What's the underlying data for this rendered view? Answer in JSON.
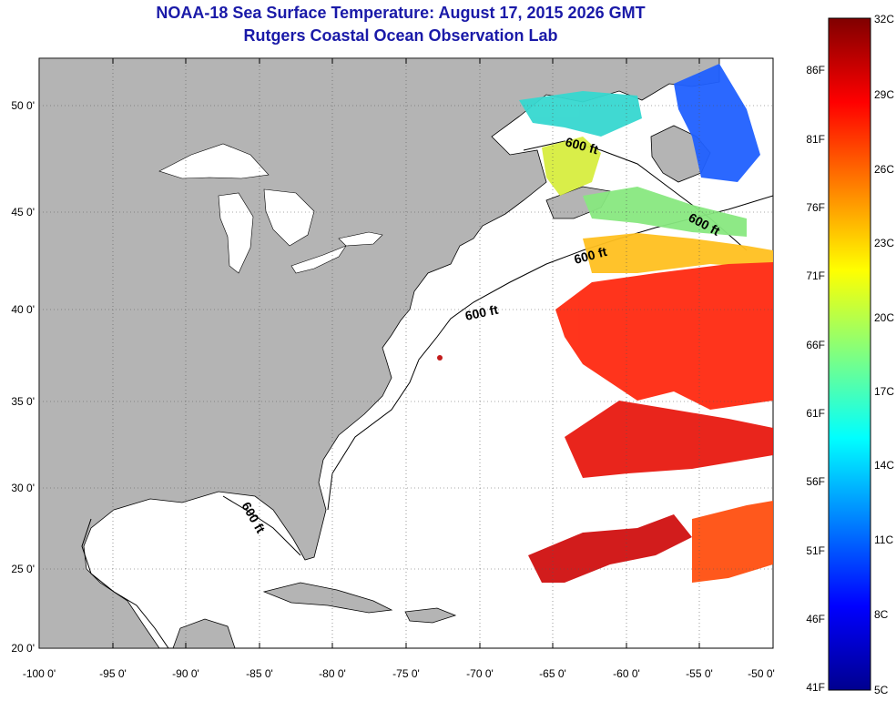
{
  "title": "NOAA-18 Sea Surface Temperature:  August 17, 2015 2026 GMT",
  "subtitle": "Rutgers Coastal Ocean Observation Lab",
  "map": {
    "lon_ticks": [
      "-100 0'",
      "-95 0'",
      "-90 0'",
      "-85 0'",
      "-80 0'",
      "-75 0'",
      "-70 0'",
      "-65 0'",
      "-60 0'",
      "-55 0'",
      "-50 0'"
    ],
    "lat_ticks": [
      "50 0'",
      "45 0'",
      "40 0'",
      "35 0'",
      "30 0'",
      "25 0'",
      "20 0'"
    ],
    "lon_range": [
      -100,
      -50
    ],
    "lat_range": [
      20,
      52
    ],
    "grid": true,
    "land_color": "#b4b4b4",
    "water_color": "#ffffff"
  },
  "contours": {
    "depth_label": "600 ft",
    "label_count": 5
  },
  "colorbar": {
    "celsius_labels": [
      "32C",
      "29C",
      "26C",
      "23C",
      "20C",
      "17C",
      "14C",
      "11C",
      "8C",
      "5C"
    ],
    "fahrenheit_labels": [
      "86F",
      "81F",
      "76F",
      "71F",
      "66F",
      "61F",
      "56F",
      "51F",
      "46F",
      "41F"
    ],
    "celsius_range": [
      5,
      32
    ],
    "colormap": "jet"
  }
}
